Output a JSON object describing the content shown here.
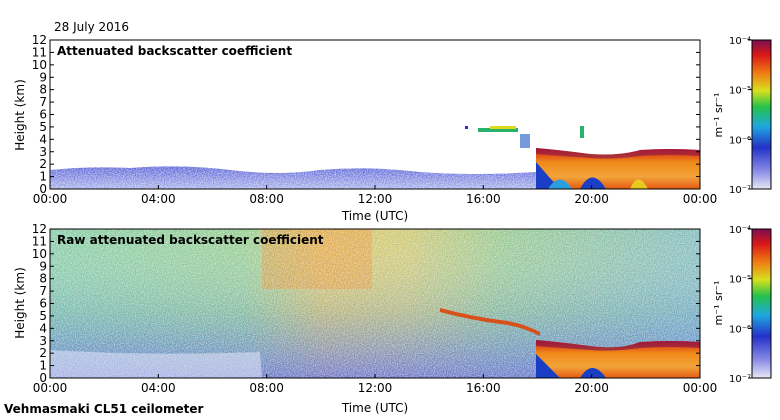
{
  "header": {
    "date": "28 July 2016"
  },
  "footer": {
    "site": "Vehmasmaki CL51 ceilometer"
  },
  "chart_data": [
    {
      "type": "heatmap",
      "title": "Attenuated backscatter coefficient",
      "xlabel": "Time (UTC)",
      "ylabel": "Height (km)",
      "x_ticks": [
        "00:00",
        "04:00",
        "08:00",
        "12:00",
        "16:00",
        "20:00",
        "00:00"
      ],
      "y_ticks": [
        0,
        1,
        2,
        3,
        4,
        5,
        6,
        7,
        8,
        9,
        10,
        11,
        12
      ],
      "ylim": [
        0,
        12
      ],
      "colorbar": {
        "unit_label": "m⁻¹ sr⁻¹",
        "ticks": [
          "10⁻⁴",
          "10⁻⁵",
          "10⁻⁶",
          "10⁻⁷"
        ],
        "range": [
          1e-07,
          0.0001
        ],
        "scale": "log"
      },
      "features": [
        {
          "label": "boundary layer",
          "time_range_h": [
            0,
            18
          ],
          "height_km": [
            0,
            1.5
          ]
        },
        {
          "label": "cloud / aerosol layer",
          "time_range_h": [
            15.5,
            17.8
          ],
          "height_km": [
            4.4,
            5.0
          ]
        },
        {
          "label": "strong signal layer",
          "time_range_h": [
            18,
            24
          ],
          "height_km": [
            0,
            2.9
          ]
        }
      ]
    },
    {
      "type": "heatmap",
      "title": "Raw attenuated backscatter coefficient",
      "xlabel": "Time (UTC)",
      "ylabel": "Height (km)",
      "x_ticks": [
        "00:00",
        "04:00",
        "08:00",
        "12:00",
        "16:00",
        "20:00",
        "00:00"
      ],
      "y_ticks": [
        0,
        1,
        2,
        3,
        4,
        5,
        6,
        7,
        8,
        9,
        10,
        11,
        12
      ],
      "ylim": [
        0,
        12
      ],
      "colorbar": {
        "unit_label": "m⁻¹ sr⁻¹",
        "ticks": [
          "10⁻⁴",
          "10⁻⁵",
          "10⁻⁶",
          "10⁻⁷"
        ],
        "range": [
          1e-07,
          0.0001
        ],
        "scale": "log"
      }
    }
  ]
}
